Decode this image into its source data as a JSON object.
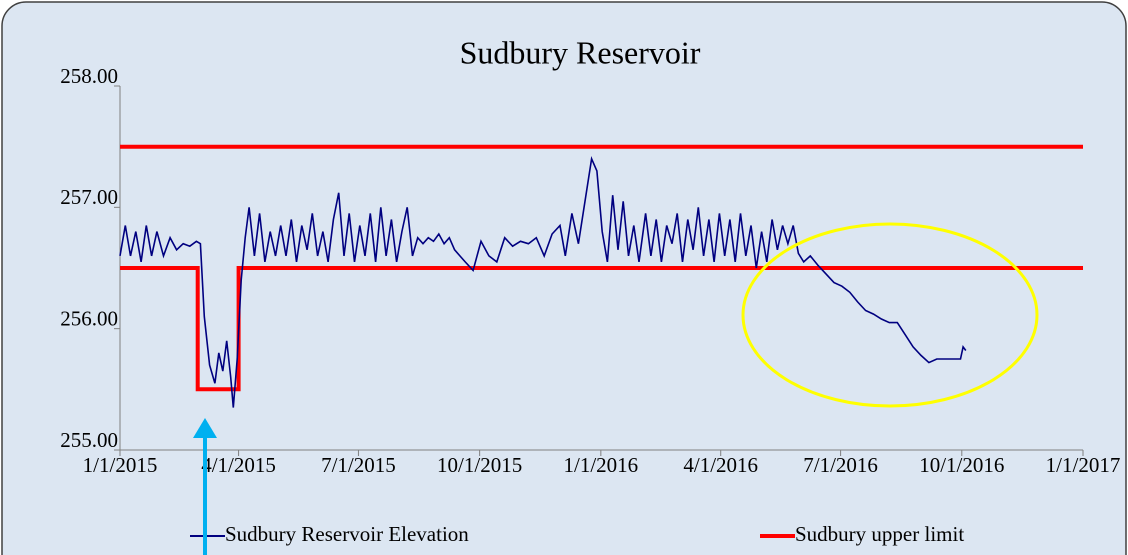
{
  "chart_data": {
    "type": "line",
    "title": "Sudbury Reservoir",
    "xlim": [
      "2015-01-01",
      "2017-01-01"
    ],
    "xticks": [
      {
        "value": "2015-01-01",
        "label": "1/1/2015"
      },
      {
        "value": "2015-04-01",
        "label": "4/1/2015"
      },
      {
        "value": "2015-07-01",
        "label": "7/1/2015"
      },
      {
        "value": "2015-10-01",
        "label": "10/1/2015"
      },
      {
        "value": "2016-01-01",
        "label": "1/1/2016"
      },
      {
        "value": "2016-04-01",
        "label": "4/1/2016"
      },
      {
        "value": "2016-07-01",
        "label": "7/1/2016"
      },
      {
        "value": "2016-10-01",
        "label": "10/1/2016"
      },
      {
        "value": "2017-01-01",
        "label": "1/1/2017"
      }
    ],
    "ylim": [
      255,
      258
    ],
    "yticks": [
      {
        "value": 255,
        "label": "255.00"
      },
      {
        "value": 256,
        "label": "256.00"
      },
      {
        "value": 257,
        "label": "257.00"
      },
      {
        "value": 258,
        "label": "258.00"
      }
    ],
    "legend": "bottom",
    "series": [
      {
        "name": "Sudbury Reservoir Elevation",
        "color": "#000080",
        "x": [
          "2015-01-01",
          "2015-01-05",
          "2015-01-09",
          "2015-01-13",
          "2015-01-17",
          "2015-01-21",
          "2015-01-25",
          "2015-01-29",
          "2015-02-03",
          "2015-02-08",
          "2015-02-13",
          "2015-02-18",
          "2015-02-23",
          "2015-02-28",
          "2015-03-03",
          "2015-03-06",
          "2015-03-10",
          "2015-03-14",
          "2015-03-17",
          "2015-03-20",
          "2015-03-23",
          "2015-03-26",
          "2015-03-28",
          "2015-03-31",
          "2015-04-03",
          "2015-04-06",
          "2015-04-09",
          "2015-04-13",
          "2015-04-17",
          "2015-04-21",
          "2015-04-25",
          "2015-04-29",
          "2015-05-03",
          "2015-05-07",
          "2015-05-11",
          "2015-05-15",
          "2015-05-19",
          "2015-05-23",
          "2015-05-27",
          "2015-05-31",
          "2015-06-04",
          "2015-06-08",
          "2015-06-12",
          "2015-06-16",
          "2015-06-20",
          "2015-06-24",
          "2015-06-28",
          "2015-07-02",
          "2015-07-06",
          "2015-07-10",
          "2015-07-14",
          "2015-07-18",
          "2015-07-22",
          "2015-07-26",
          "2015-07-30",
          "2015-08-03",
          "2015-08-07",
          "2015-08-11",
          "2015-08-15",
          "2015-08-19",
          "2015-08-23",
          "2015-08-27",
          "2015-08-31",
          "2015-09-04",
          "2015-09-08",
          "2015-09-12",
          "2015-09-16",
          "2015-09-20",
          "2015-09-26",
          "2015-10-02",
          "2015-10-08",
          "2015-10-14",
          "2015-10-20",
          "2015-10-26",
          "2015-11-01",
          "2015-11-07",
          "2015-11-13",
          "2015-11-19",
          "2015-11-25",
          "2015-12-01",
          "2015-12-05",
          "2015-12-10",
          "2015-12-15",
          "2015-12-20",
          "2015-12-25",
          "2015-12-29",
          "2016-01-02",
          "2016-01-06",
          "2016-01-10",
          "2016-01-14",
          "2016-01-18",
          "2016-01-22",
          "2016-01-26",
          "2016-01-30",
          "2016-02-04",
          "2016-02-08",
          "2016-02-12",
          "2016-02-16",
          "2016-02-20",
          "2016-02-24",
          "2016-02-28",
          "2016-03-03",
          "2016-03-07",
          "2016-03-11",
          "2016-03-15",
          "2016-03-19",
          "2016-03-23",
          "2016-03-27",
          "2016-03-31",
          "2016-04-04",
          "2016-04-08",
          "2016-04-12",
          "2016-04-16",
          "2016-04-20",
          "2016-04-24",
          "2016-04-28",
          "2016-05-02",
          "2016-05-06",
          "2016-05-10",
          "2016-05-14",
          "2016-05-18",
          "2016-05-22",
          "2016-05-26",
          "2016-05-30",
          "2016-06-03",
          "2016-06-08",
          "2016-06-14",
          "2016-06-20",
          "2016-06-26",
          "2016-07-02",
          "2016-07-08",
          "2016-07-14",
          "2016-07-20",
          "2016-07-26",
          "2016-08-01",
          "2016-08-07",
          "2016-08-13",
          "2016-08-19",
          "2016-08-25",
          "2016-08-31",
          "2016-09-06",
          "2016-09-12",
          "2016-09-18",
          "2016-09-24",
          "2016-09-30",
          "2016-10-02",
          "2016-10-04"
        ],
        "values": [
          256.6,
          256.85,
          256.6,
          256.8,
          256.55,
          256.85,
          256.6,
          256.8,
          256.6,
          256.75,
          256.65,
          256.7,
          256.68,
          256.72,
          256.7,
          256.1,
          255.7,
          255.55,
          255.8,
          255.65,
          255.9,
          255.6,
          255.35,
          255.75,
          256.4,
          256.75,
          257.0,
          256.6,
          256.95,
          256.55,
          256.8,
          256.6,
          256.85,
          256.6,
          256.9,
          256.55,
          256.85,
          256.65,
          256.95,
          256.6,
          256.8,
          256.55,
          256.9,
          257.12,
          256.6,
          256.95,
          256.55,
          256.85,
          256.6,
          256.95,
          256.55,
          257.0,
          256.6,
          256.9,
          256.55,
          256.8,
          257.0,
          256.6,
          256.75,
          256.7,
          256.75,
          256.72,
          256.78,
          256.7,
          256.75,
          256.65,
          256.6,
          256.55,
          256.48,
          256.72,
          256.6,
          256.55,
          256.75,
          256.68,
          256.72,
          256.7,
          256.75,
          256.6,
          256.78,
          256.85,
          256.6,
          256.95,
          256.7,
          257.05,
          257.4,
          257.3,
          256.8,
          256.55,
          257.1,
          256.65,
          257.05,
          256.6,
          256.85,
          256.55,
          256.95,
          256.6,
          256.9,
          256.55,
          256.85,
          256.7,
          256.95,
          256.55,
          256.9,
          256.65,
          257.0,
          256.6,
          256.9,
          256.55,
          256.95,
          256.6,
          256.9,
          256.55,
          256.95,
          256.6,
          256.85,
          256.5,
          256.8,
          256.55,
          256.9,
          256.65,
          256.85,
          256.7,
          256.85,
          256.62,
          256.55,
          256.6,
          256.52,
          256.45,
          256.38,
          256.35,
          256.3,
          256.22,
          256.15,
          256.12,
          256.08,
          256.05,
          256.05,
          255.95,
          255.85,
          255.78,
          255.72,
          255.75,
          255.75,
          255.75,
          255.75,
          255.85,
          255.82
        ]
      },
      {
        "name": "Sudbury upper limit",
        "color": "#ff0000",
        "x": [
          "2015-01-01",
          "2015-03-01",
          "2015-03-01",
          "2015-04-01",
          "2015-04-01",
          "2017-01-01",
          "2017-01-01",
          "2015-01-01",
          "2017-01-01"
        ],
        "values": [
          256.5,
          256.5,
          255.5,
          255.5,
          256.5,
          256.5,
          null,
          257.5,
          257.5
        ]
      }
    ]
  }
}
